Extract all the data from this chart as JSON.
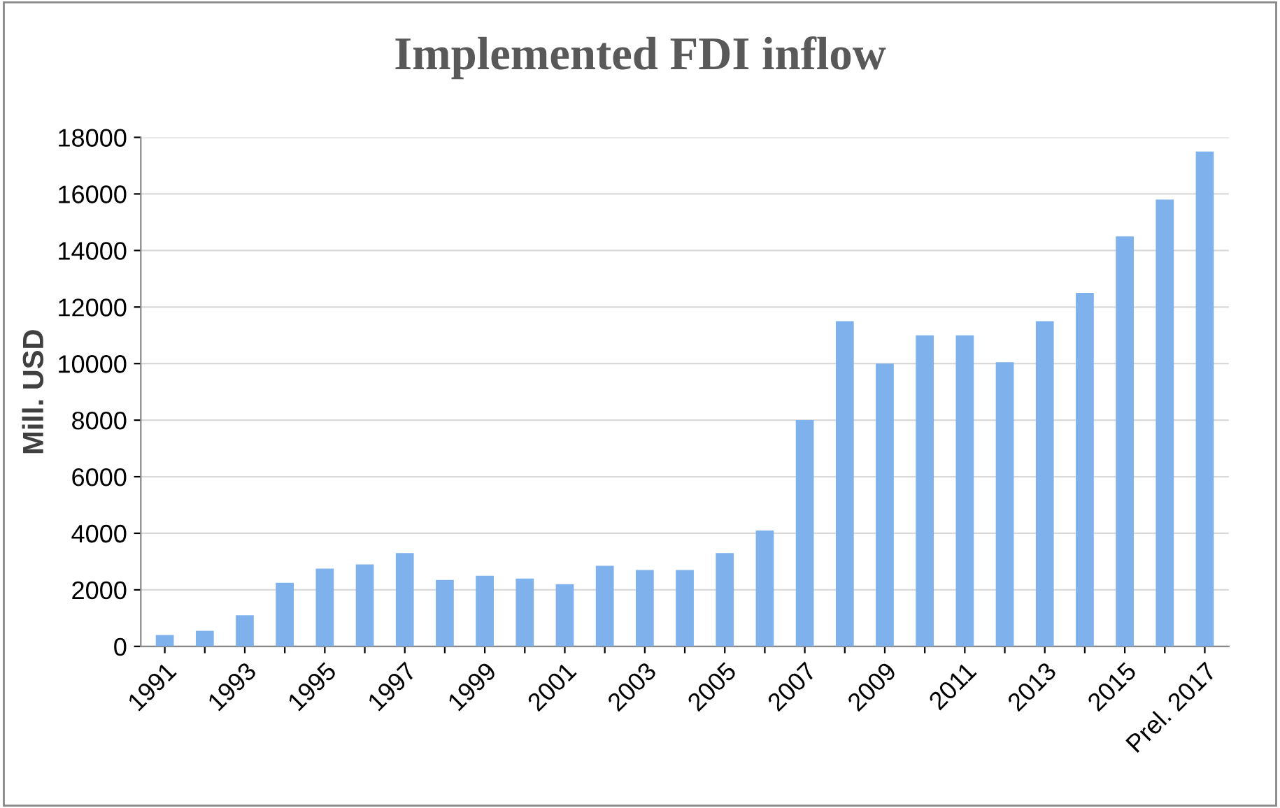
{
  "chart_data": {
    "type": "bar",
    "title": "Implemented FDI inflow",
    "ylabel": "Mill. USD",
    "categories": [
      "1991",
      null,
      "1993",
      null,
      "1995",
      null,
      "1997",
      null,
      "1999",
      null,
      "2001",
      null,
      "2003",
      null,
      "2005",
      null,
      "2007",
      null,
      "2009",
      null,
      "2011",
      null,
      "2013",
      null,
      "2015",
      null,
      "Prel. 2017"
    ],
    "values": [
      400,
      550,
      1100,
      2250,
      2750,
      2900,
      3300,
      2350,
      2500,
      2400,
      2200,
      2850,
      2700,
      2700,
      3300,
      4100,
      8000,
      11500,
      10000,
      11000,
      11000,
      10050,
      11500,
      12500,
      14500,
      15800,
      17500
    ],
    "color": "#7fb2ec",
    "ylim": [
      0,
      18000
    ],
    "yticks": [
      0,
      2000,
      4000,
      6000,
      8000,
      10000,
      12000,
      14000,
      16000,
      18000
    ],
    "grid": "y"
  }
}
